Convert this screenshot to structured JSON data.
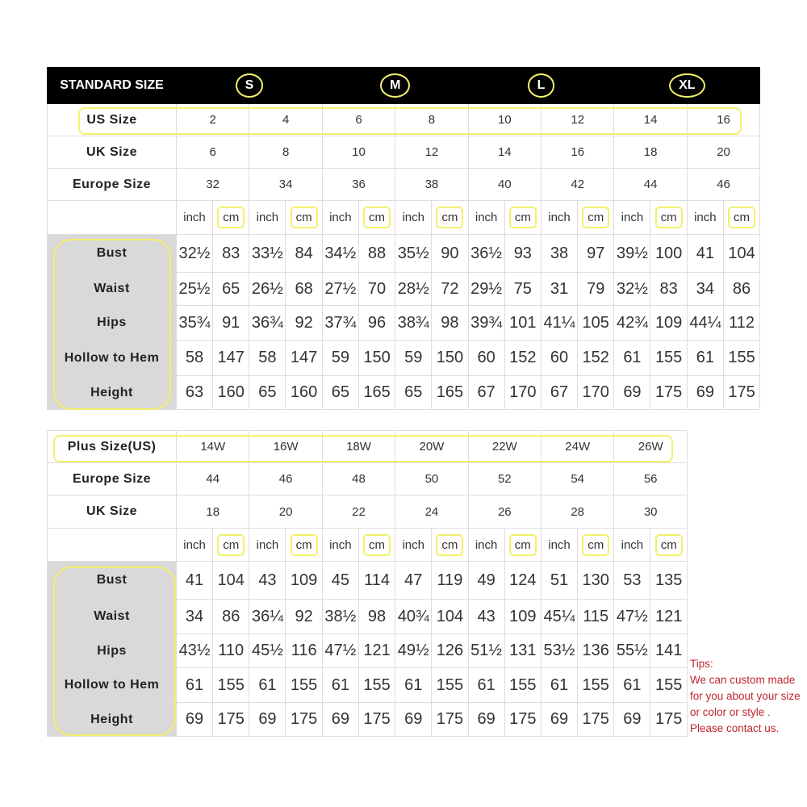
{
  "standard": {
    "title": "STANDARD SIZE",
    "letters": [
      "S",
      "M",
      "L",
      "XL"
    ],
    "size_rows": [
      {
        "label": "US Size",
        "values": [
          "2",
          "4",
          "6",
          "8",
          "10",
          "12",
          "14",
          "16"
        ]
      },
      {
        "label": "UK Size",
        "values": [
          "6",
          "8",
          "10",
          "12",
          "14",
          "16",
          "18",
          "20"
        ]
      },
      {
        "label": "Europe Size",
        "values": [
          "32",
          "34",
          "36",
          "38",
          "40",
          "42",
          "44",
          "46"
        ]
      }
    ],
    "units": [
      "inch",
      "cm"
    ],
    "measure_rows": [
      {
        "label": "Bust",
        "values": [
          "32½",
          "83",
          "33½",
          "84",
          "34½",
          "88",
          "35½",
          "90",
          "36½",
          "93",
          "38",
          "97",
          "39½",
          "100",
          "41",
          "104"
        ]
      },
      {
        "label": "Waist",
        "values": [
          "25½",
          "65",
          "26½",
          "68",
          "27½",
          "70",
          "28½",
          "72",
          "29½",
          "75",
          "31",
          "79",
          "32½",
          "83",
          "34",
          "86"
        ]
      },
      {
        "label": "Hips",
        "values": [
          "35¾",
          "91",
          "36¾",
          "92",
          "37¾",
          "96",
          "38¾",
          "98",
          "39¾",
          "101",
          "41¼",
          "105",
          "42¾",
          "109",
          "44¼",
          "112"
        ]
      },
      {
        "label": "Hollow to Hem",
        "values": [
          "58",
          "147",
          "58",
          "147",
          "59",
          "150",
          "59",
          "150",
          "60",
          "152",
          "60",
          "152",
          "61",
          "155",
          "61",
          "155"
        ]
      },
      {
        "label": "Height",
        "values": [
          "63",
          "160",
          "65",
          "160",
          "65",
          "165",
          "65",
          "165",
          "67",
          "170",
          "67",
          "170",
          "69",
          "175",
          "69",
          "175"
        ]
      }
    ]
  },
  "plus": {
    "size_rows": [
      {
        "label": "Plus Size(US)",
        "values": [
          "14W",
          "16W",
          "18W",
          "20W",
          "22W",
          "24W",
          "26W"
        ]
      },
      {
        "label": "Europe Size",
        "values": [
          "44",
          "46",
          "48",
          "50",
          "52",
          "54",
          "56"
        ]
      },
      {
        "label": "UK Size",
        "values": [
          "18",
          "20",
          "22",
          "24",
          "26",
          "28",
          "30"
        ]
      }
    ],
    "units": [
      "inch",
      "cm"
    ],
    "measure_rows": [
      {
        "label": "Bust",
        "values": [
          "41",
          "104",
          "43",
          "109",
          "45",
          "114",
          "47",
          "119",
          "49",
          "124",
          "51",
          "130",
          "53",
          "135"
        ]
      },
      {
        "label": "Waist",
        "values": [
          "34",
          "86",
          "36¼",
          "92",
          "38½",
          "98",
          "40¾",
          "104",
          "43",
          "109",
          "45¼",
          "115",
          "47½",
          "121"
        ]
      },
      {
        "label": "Hips",
        "values": [
          "43½",
          "110",
          "45½",
          "116",
          "47½",
          "121",
          "49½",
          "126",
          "51½",
          "131",
          "53½",
          "136",
          "55½",
          "141"
        ]
      },
      {
        "label": "Hollow to Hem",
        "values": [
          "61",
          "155",
          "61",
          "155",
          "61",
          "155",
          "61",
          "155",
          "61",
          "155",
          "61",
          "155",
          "61",
          "155"
        ]
      },
      {
        "label": "Height",
        "values": [
          "69",
          "175",
          "69",
          "175",
          "69",
          "175",
          "69",
          "175",
          "69",
          "175",
          "69",
          "175",
          "69",
          "175"
        ]
      }
    ]
  },
  "tips": {
    "title": "Tips:",
    "lines": [
      "We can custom made",
      "for you about your size",
      "or color or style .",
      "Please contact us."
    ]
  },
  "colors": {
    "highlight": "#f3f06a",
    "header_bg": "#000000",
    "label_bg": "#d9d9d9",
    "tips": "#c0272d"
  }
}
